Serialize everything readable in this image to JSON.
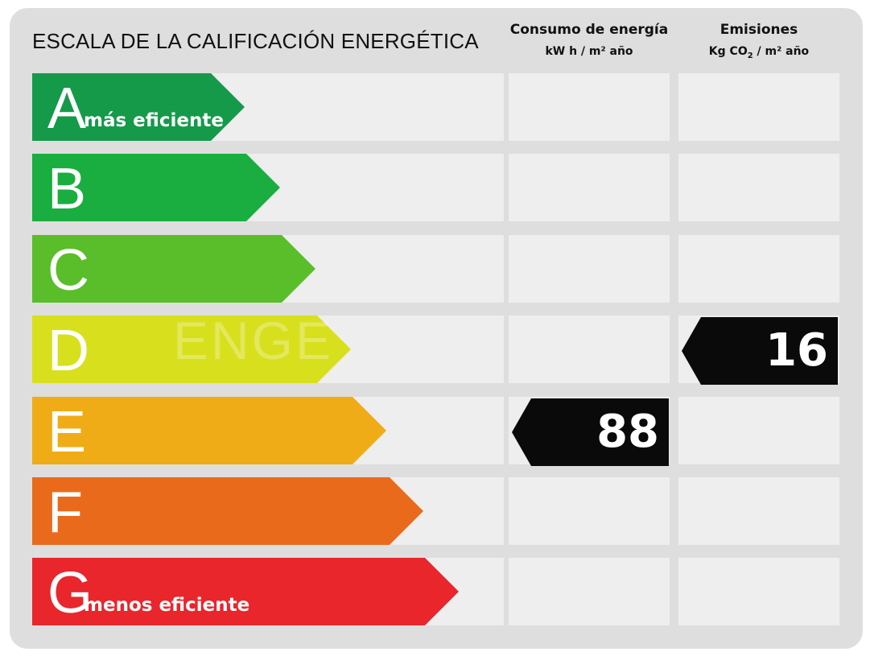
{
  "header": {
    "title": "ESCALA DE LA CALIFICACIÓN ENERGÉTICA",
    "col_energy_title": "Consumo de energía",
    "col_energy_unit": "kW h / m² año",
    "col_emissions_title": "Emisiones",
    "col_emissions_unit_pre": "Kg CO",
    "col_emissions_unit_sub": "2",
    "col_emissions_unit_post": " / m² año"
  },
  "watermark": "ENGE",
  "ratings": [
    {
      "letter": "A",
      "note": "más eficiente",
      "color": "#159a4a"
    },
    {
      "letter": "B",
      "note": "",
      "color": "#19ae3f"
    },
    {
      "letter": "C",
      "note": "",
      "color": "#5abd2a"
    },
    {
      "letter": "D",
      "note": "",
      "color": "#d8e01e"
    },
    {
      "letter": "E",
      "note": "",
      "color": "#efac16"
    },
    {
      "letter": "F",
      "note": "",
      "color": "#ea6a1c"
    },
    {
      "letter": "G",
      "note": "menos eficiente",
      "color": "#e8262c"
    }
  ],
  "energy": {
    "rating": "E",
    "value": "88"
  },
  "emissions": {
    "rating": "D",
    "value": "16"
  }
}
